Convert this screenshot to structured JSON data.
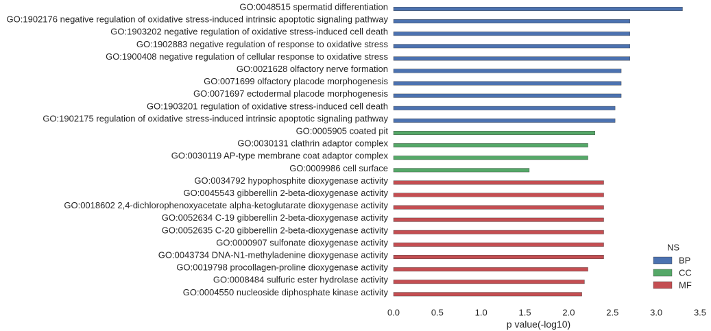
{
  "chart_data": {
    "type": "bar",
    "orientation": "horizontal",
    "title": "",
    "xlabel": "p value(-log10)",
    "ylabel": "",
    "xlim": [
      0,
      3.5
    ],
    "xticks": [
      "0.0",
      "0.5",
      "1.0",
      "1.5",
      "2.0",
      "2.5",
      "3.0",
      "3.5"
    ],
    "grid": false,
    "legend": {
      "title": "NS",
      "placement": "lower-right",
      "entries": [
        {
          "name": "BP",
          "color": "#4c72b0"
        },
        {
          "name": "CC",
          "color": "#55a868"
        },
        {
          "name": "MF",
          "color": "#c44e52"
        }
      ]
    },
    "bars": [
      {
        "label": "GO:0048515 spermatid differentiation",
        "ns": "BP",
        "value": 3.3
      },
      {
        "label": "GO:1902176 negative regulation of oxidative stress-induced intrinsic apoptotic signaling pathway",
        "ns": "BP",
        "value": 2.7
      },
      {
        "label": "GO:1903202 negative regulation of oxidative stress-induced cell death",
        "ns": "BP",
        "value": 2.7
      },
      {
        "label": "GO:1902883 negative regulation of response to oxidative stress",
        "ns": "BP",
        "value": 2.7
      },
      {
        "label": "GO:1900408 negative regulation of cellular response to oxidative stress",
        "ns": "BP",
        "value": 2.7
      },
      {
        "label": "GO:0021628 olfactory nerve formation",
        "ns": "BP",
        "value": 2.6
      },
      {
        "label": "GO:0071699 olfactory placode morphogenesis",
        "ns": "BP",
        "value": 2.6
      },
      {
        "label": "GO:0071697 ectodermal placode morphogenesis",
        "ns": "BP",
        "value": 2.6
      },
      {
        "label": "GO:1903201 regulation of oxidative stress-induced cell death",
        "ns": "BP",
        "value": 2.53
      },
      {
        "label": "GO:1902175 regulation of oxidative stress-induced intrinsic apoptotic signaling pathway",
        "ns": "BP",
        "value": 2.53
      },
      {
        "label": "GO:0005905 coated pit",
        "ns": "CC",
        "value": 2.3
      },
      {
        "label": "GO:0030131 clathrin adaptor complex",
        "ns": "CC",
        "value": 2.22
      },
      {
        "label": "GO:0030119 AP-type membrane coat adaptor complex",
        "ns": "CC",
        "value": 2.22
      },
      {
        "label": "GO:0009986 cell surface",
        "ns": "CC",
        "value": 1.55
      },
      {
        "label": "GO:0034792 hypophosphite dioxygenase activity",
        "ns": "MF",
        "value": 2.4
      },
      {
        "label": "GO:0045543 gibberellin 2-beta-dioxygenase activity",
        "ns": "MF",
        "value": 2.4
      },
      {
        "label": "GO:0018602 2,4-dichlorophenoxyacetate alpha-ketoglutarate dioxygenase activity",
        "ns": "MF",
        "value": 2.4
      },
      {
        "label": "GO:0052634 C-19 gibberellin 2-beta-dioxygenase activity",
        "ns": "MF",
        "value": 2.4
      },
      {
        "label": "GO:0052635 C-20 gibberellin 2-beta-dioxygenase activity",
        "ns": "MF",
        "value": 2.4
      },
      {
        "label": "GO:0000907 sulfonate dioxygenase activity",
        "ns": "MF",
        "value": 2.4
      },
      {
        "label": "GO:0043734 DNA-N1-methyladenine dioxygenase activity",
        "ns": "MF",
        "value": 2.4
      },
      {
        "label": "GO:0019798 procollagen-proline dioxygenase activity",
        "ns": "MF",
        "value": 2.22
      },
      {
        "label": "GO:0008484 sulfuric ester hydrolase activity",
        "ns": "MF",
        "value": 2.18
      },
      {
        "label": "GO:0004550 nucleoside diphosphate kinase activity",
        "ns": "MF",
        "value": 2.15
      }
    ]
  }
}
